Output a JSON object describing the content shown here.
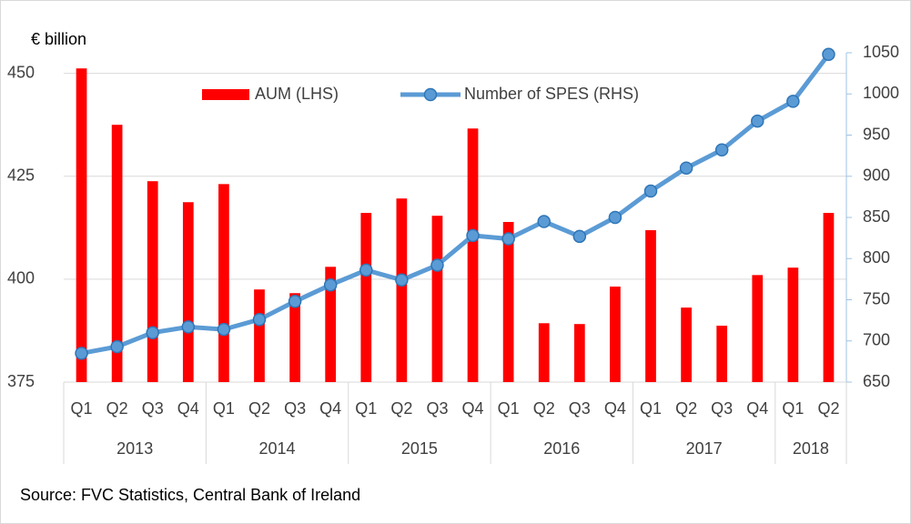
{
  "chart_data": {
    "type": "bar_line",
    "y_label": "€ billion",
    "categories": [
      "Q1",
      "Q2",
      "Q3",
      "Q4",
      "Q1",
      "Q2",
      "Q3",
      "Q4",
      "Q1",
      "Q2",
      "Q3",
      "Q4",
      "Q1",
      "Q2",
      "Q3",
      "Q4",
      "Q1",
      "Q2",
      "Q3",
      "Q4",
      "Q1",
      "Q2"
    ],
    "year_groups": [
      {
        "label": "2013",
        "count": 4
      },
      {
        "label": "2014",
        "count": 4
      },
      {
        "label": "2015",
        "count": 4
      },
      {
        "label": "2016",
        "count": 4
      },
      {
        "label": "2017",
        "count": 4
      },
      {
        "label": "2018",
        "count": 2
      }
    ],
    "series": [
      {
        "name": "AUM (LHS)",
        "type": "bar",
        "color": "#ff0000",
        "axis": "y",
        "values": [
          451.2,
          437.5,
          423.8,
          418.7,
          423.1,
          397.5,
          396.6,
          403,
          416.1,
          419.6,
          415.4,
          436.6,
          413.9,
          389.3,
          389.1,
          398.2,
          411.9,
          393.1,
          388.7,
          401,
          402.8,
          416.1
        ]
      },
      {
        "name": "Number of SPES (RHS)",
        "type": "line",
        "color": "#5b9bd5",
        "axis": "y2",
        "values": [
          685,
          693,
          710,
          717,
          714,
          726,
          748,
          768,
          786,
          774,
          792,
          828,
          824,
          845,
          827,
          850,
          882,
          910,
          932,
          967,
          991,
          1048
        ]
      }
    ],
    "ylim": [
      375,
      455
    ],
    "yticks": [
      375,
      400,
      425,
      450
    ],
    "y2lim": [
      650,
      1050
    ],
    "y2ticks": [
      650,
      700,
      750,
      800,
      850,
      900,
      950,
      1000,
      1050
    ],
    "grid": true,
    "source": "Source:  FVC Statistics, Central Bank of Ireland"
  }
}
